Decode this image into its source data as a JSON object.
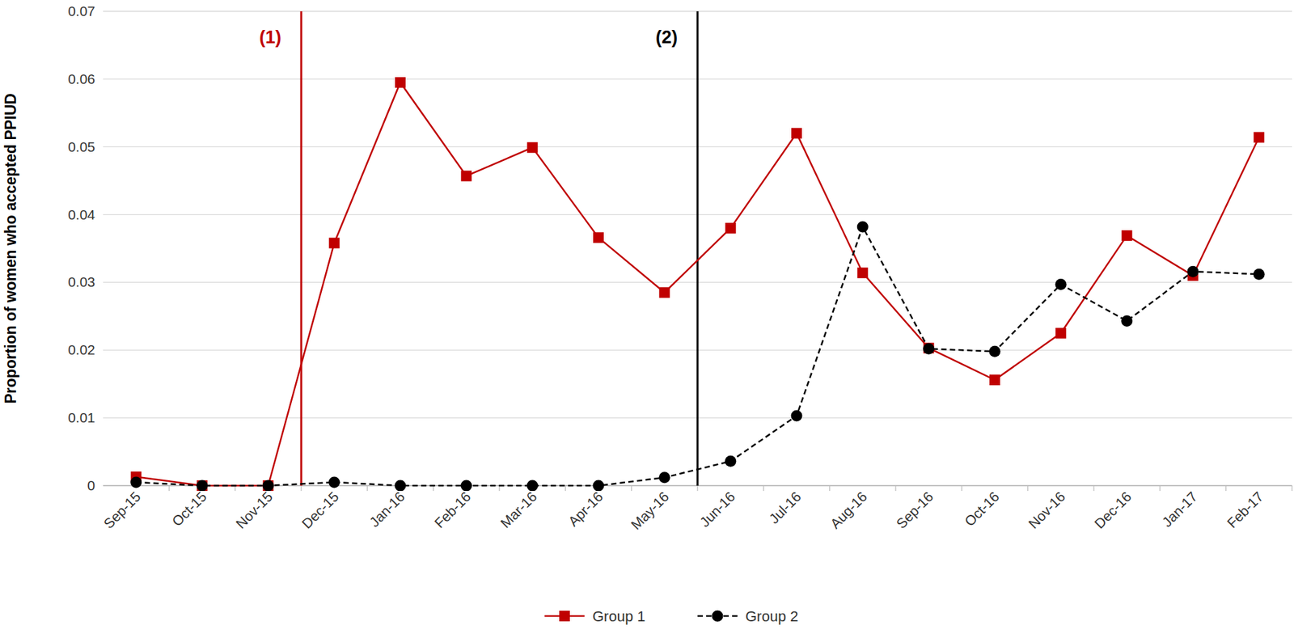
{
  "chart_data": {
    "type": "line",
    "y_label": "Proportion of women who accepted PPIUD",
    "categories": [
      "Sep-15",
      "Oct-15",
      "Nov-15",
      "Dec-15",
      "Jan-16",
      "Feb-16",
      "Mar-16",
      "Apr-16",
      "May-16",
      "Jun-16",
      "Jul-16",
      "Aug-16",
      "Sep-16",
      "Oct-16",
      "Nov-16",
      "Dec-16",
      "Jan-17",
      "Feb-17"
    ],
    "series": [
      {
        "name": "Group 1",
        "color": "#c00000",
        "marker": "square",
        "line_style": "solid",
        "values": [
          0.0013,
          0,
          0,
          0.0358,
          0.0595,
          0.0457,
          0.0499,
          0.0366,
          0.0285,
          0.038,
          0.052,
          0.0314,
          0.0203,
          0.0156,
          0.0225,
          0.0369,
          0.031,
          0.0514
        ]
      },
      {
        "name": "Group 2",
        "color": "#000000",
        "marker": "circle",
        "line_style": "dashed",
        "values": [
          0.0005,
          0,
          0,
          0.0005,
          0,
          0,
          0,
          0,
          0.0012,
          0.0036,
          0.0103,
          0.0382,
          0.0202,
          0.0198,
          0.0297,
          0.0243,
          0.0316,
          0.0312
        ]
      }
    ],
    "annotations": [
      {
        "label": "(1)",
        "x": 2.5,
        "color": "#c00000"
      },
      {
        "label": "(2)",
        "x": 8.5,
        "color": "#000000"
      }
    ],
    "ylim": [
      0,
      0.07
    ],
    "yticks": [
      0,
      0.01,
      0.02,
      0.03,
      0.04,
      0.05,
      0.06,
      0.07
    ],
    "grid": true,
    "legend": "bottom"
  }
}
